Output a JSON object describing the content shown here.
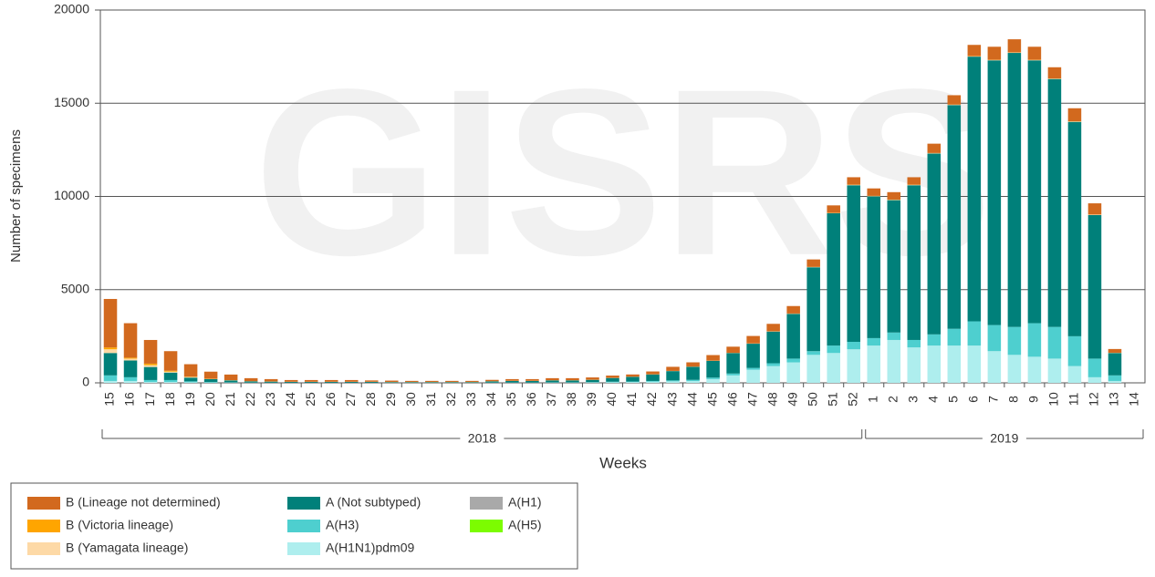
{
  "chart_data": {
    "type": "stacked_bar",
    "watermark": "GISRS",
    "y_label": "Number of specimens",
    "x_label": "Weeks",
    "ylim": [
      0,
      20000
    ],
    "yticks": [
      0,
      5000,
      10000,
      15000,
      20000
    ],
    "grid": true,
    "categories": [
      "15",
      "16",
      "17",
      "18",
      "19",
      "20",
      "21",
      "22",
      "23",
      "24",
      "25",
      "26",
      "27",
      "28",
      "29",
      "30",
      "31",
      "32",
      "33",
      "34",
      "35",
      "36",
      "37",
      "38",
      "39",
      "40",
      "41",
      "42",
      "43",
      "44",
      "45",
      "46",
      "47",
      "48",
      "49",
      "50",
      "51",
      "52",
      "1",
      "2",
      "3",
      "4",
      "5",
      "6",
      "7",
      "8",
      "9",
      "10",
      "11",
      "12",
      "13",
      "14"
    ],
    "groups": [
      {
        "label": "2018",
        "first": 0,
        "last": 37
      },
      {
        "label": "2019",
        "first": 38,
        "last": 51
      }
    ],
    "series": [
      {
        "name": "A(H1N1)pdm09",
        "color": "#aeeeee",
        "values": [
          100,
          100,
          50,
          50,
          30,
          20,
          10,
          10,
          5,
          5,
          5,
          5,
          5,
          5,
          5,
          5,
          5,
          5,
          5,
          10,
          10,
          10,
          10,
          10,
          20,
          30,
          40,
          60,
          80,
          100,
          200,
          400,
          700,
          900,
          1100,
          1500,
          1600,
          1800,
          2000,
          2300,
          1900,
          2000,
          2000,
          2000,
          1700,
          1500,
          1400,
          1300,
          900,
          300,
          100,
          0
        ]
      },
      {
        "name": "A(H3)",
        "color": "#4ecfcf",
        "values": [
          300,
          200,
          100,
          100,
          50,
          30,
          20,
          10,
          10,
          5,
          5,
          5,
          5,
          5,
          5,
          5,
          5,
          5,
          5,
          10,
          10,
          10,
          20,
          20,
          20,
          30,
          30,
          40,
          50,
          60,
          80,
          100,
          100,
          150,
          200,
          200,
          400,
          400,
          400,
          400,
          400,
          600,
          900,
          1300,
          1400,
          1500,
          1800,
          1700,
          1600,
          1000,
          300,
          0
        ]
      },
      {
        "name": "A (Not subtyped)",
        "color": "#00807a",
        "values": [
          1200,
          900,
          700,
          400,
          200,
          150,
          100,
          60,
          50,
          40,
          40,
          40,
          40,
          40,
          30,
          30,
          30,
          30,
          30,
          60,
          80,
          80,
          100,
          100,
          120,
          200,
          250,
          350,
          500,
          700,
          900,
          1100,
          1300,
          1700,
          2400,
          4500,
          7100,
          8400,
          7600,
          7100,
          8300,
          9700,
          12000,
          14200,
          14200,
          14700,
          14100,
          13300,
          11500,
          7700,
          1200,
          0
        ]
      },
      {
        "name": "A(H1)",
        "color": "#a9a9a9",
        "values": [
          0,
          0,
          0,
          0,
          0,
          0,
          0,
          0,
          0,
          0,
          0,
          0,
          0,
          0,
          0,
          0,
          0,
          0,
          0,
          0,
          0,
          0,
          0,
          0,
          0,
          0,
          0,
          0,
          0,
          0,
          0,
          0,
          0,
          0,
          0,
          0,
          0,
          0,
          0,
          0,
          0,
          0,
          0,
          0,
          0,
          0,
          0,
          0,
          0,
          0,
          0,
          0
        ]
      },
      {
        "name": "A(H5)",
        "color": "#7cfc00",
        "values": [
          0,
          0,
          0,
          0,
          0,
          0,
          0,
          0,
          0,
          0,
          0,
          0,
          0,
          0,
          0,
          0,
          0,
          0,
          0,
          0,
          0,
          0,
          0,
          0,
          0,
          0,
          0,
          0,
          0,
          0,
          0,
          0,
          0,
          0,
          0,
          0,
          0,
          0,
          0,
          0,
          0,
          0,
          0,
          0,
          0,
          0,
          0,
          0,
          0,
          0,
          0,
          0
        ]
      },
      {
        "name": "B (Yamagata lineage)",
        "color": "#fdd9a6",
        "values": [
          200,
          100,
          100,
          50,
          30,
          10,
          10,
          5,
          5,
          5,
          5,
          5,
          5,
          5,
          5,
          5,
          5,
          5,
          5,
          5,
          5,
          5,
          5,
          5,
          5,
          5,
          5,
          5,
          5,
          5,
          5,
          5,
          10,
          10,
          10,
          10,
          10,
          20,
          20,
          20,
          20,
          20,
          20,
          20,
          20,
          20,
          20,
          20,
          20,
          20,
          10,
          0
        ]
      },
      {
        "name": "B (Victoria lineage)",
        "color": "#ffa500",
        "values": [
          100,
          50,
          80,
          50,
          20,
          10,
          5,
          5,
          5,
          5,
          5,
          5,
          5,
          5,
          5,
          5,
          5,
          5,
          5,
          5,
          5,
          5,
          5,
          5,
          5,
          5,
          5,
          5,
          5,
          5,
          5,
          5,
          5,
          5,
          10,
          10,
          10,
          10,
          10,
          10,
          10,
          10,
          10,
          10,
          10,
          10,
          10,
          10,
          10,
          10,
          5,
          0
        ]
      },
      {
        "name": "B (Lineage not determined)",
        "color": "#d2691e",
        "values": [
          2600,
          1850,
          1270,
          1050,
          670,
          380,
          300,
          160,
          125,
          90,
          90,
          90,
          90,
          70,
          70,
          55,
          55,
          55,
          55,
          70,
          90,
          90,
          110,
          110,
          120,
          120,
          120,
          150,
          220,
          230,
          300,
          330,
          400,
          400,
          400,
          400,
          400,
          400,
          400,
          400,
          400,
          500,
          500,
          600,
          700,
          700,
          700,
          600,
          700,
          600,
          200,
          0
        ]
      }
    ]
  }
}
